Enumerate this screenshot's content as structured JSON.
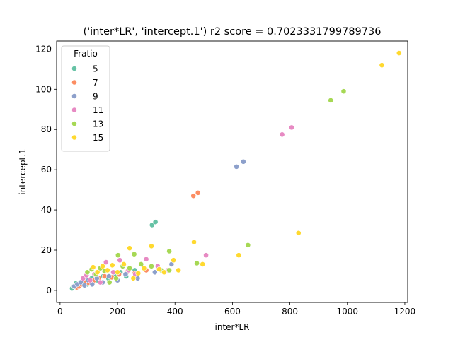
{
  "chart_data": {
    "type": "scatter",
    "title": "('inter*LR', 'intercept.1') r2 score = 0.7023331799789736",
    "xlabel": "inter*LR",
    "ylabel": "intercept.1",
    "xlim": [
      -12,
      1210
    ],
    "ylim": [
      -6,
      124
    ],
    "x_ticks": [
      0,
      200,
      400,
      600,
      800,
      1000,
      1200
    ],
    "y_ticks": [
      0,
      20,
      40,
      60,
      80,
      100,
      120
    ],
    "grid": false,
    "legend": {
      "title": "Fratio",
      "placement": "top-left"
    },
    "series": [
      {
        "name": "5",
        "color": "#66c2a5",
        "points": [
          [
            42,
            1
          ],
          [
            48,
            2
          ],
          [
            55,
            3.5
          ],
          [
            62,
            2.5
          ],
          [
            70,
            4
          ],
          [
            85,
            5.5
          ],
          [
            95,
            3
          ],
          [
            110,
            6
          ],
          [
            130,
            5
          ],
          [
            150,
            7
          ],
          [
            168,
            6
          ],
          [
            190,
            8
          ],
          [
            210,
            9
          ],
          [
            230,
            7
          ],
          [
            260,
            10
          ],
          [
            320,
            32.5
          ],
          [
            332,
            34
          ]
        ]
      },
      {
        "name": "7",
        "color": "#fc8d62",
        "points": [
          [
            58,
            1.5
          ],
          [
            66,
            2
          ],
          [
            75,
            3
          ],
          [
            88,
            4
          ],
          [
            100,
            3.5
          ],
          [
            118,
            5
          ],
          [
            135,
            6
          ],
          [
            155,
            7
          ],
          [
            180,
            6.5
          ],
          [
            205,
            8
          ],
          [
            232,
            9
          ],
          [
            260,
            8.5
          ],
          [
            300,
            10
          ],
          [
            464,
            47
          ],
          [
            480,
            48.5
          ]
        ]
      },
      {
        "name": "9",
        "color": "#8da0cb",
        "points": [
          [
            50,
            2
          ],
          [
            60,
            3
          ],
          [
            72,
            4
          ],
          [
            85,
            2.5
          ],
          [
            98,
            5
          ],
          [
            112,
            3
          ],
          [
            128,
            6
          ],
          [
            148,
            4
          ],
          [
            170,
            7
          ],
          [
            200,
            5
          ],
          [
            228,
            8
          ],
          [
            270,
            6
          ],
          [
            330,
            9
          ],
          [
            388,
            13
          ],
          [
            614,
            61.5
          ],
          [
            638,
            64
          ]
        ]
      },
      {
        "name": "11",
        "color": "#e78ac3",
        "points": [
          [
            80,
            6
          ],
          [
            92,
            7.5
          ],
          [
            105,
            5
          ],
          [
            120,
            8
          ],
          [
            140,
            4
          ],
          [
            160,
            14
          ],
          [
            185,
            9
          ],
          [
            208,
            15
          ],
          [
            238,
            10
          ],
          [
            262,
            8
          ],
          [
            300,
            15.5
          ],
          [
            340,
            12
          ],
          [
            375,
            10
          ],
          [
            508,
            17.5
          ],
          [
            773,
            77.5
          ],
          [
            806,
            81
          ]
        ]
      },
      {
        "name": "13",
        "color": "#a6d854",
        "points": [
          [
            95,
            9
          ],
          [
            110,
            10.5
          ],
          [
            125,
            8
          ],
          [
            140,
            11
          ],
          [
            155,
            9.5
          ],
          [
            172,
            4
          ],
          [
            195,
            6
          ],
          [
            202,
            17.5
          ],
          [
            218,
            12
          ],
          [
            242,
            11
          ],
          [
            258,
            18
          ],
          [
            282,
            13
          ],
          [
            318,
            12
          ],
          [
            352,
            10
          ],
          [
            380,
            10
          ],
          [
            380,
            19.5
          ],
          [
            476,
            13.5
          ],
          [
            654,
            22.5
          ],
          [
            942,
            94.5
          ],
          [
            987,
            99
          ]
        ]
      },
      {
        "name": "15",
        "color": "#ffd92f",
        "points": [
          [
            115,
            11.5
          ],
          [
            130,
            9
          ],
          [
            148,
            12
          ],
          [
            165,
            10
          ],
          [
            182,
            12.5
          ],
          [
            200,
            9
          ],
          [
            222,
            13
          ],
          [
            242,
            21
          ],
          [
            255,
            6
          ],
          [
            272,
            8.5
          ],
          [
            292,
            11
          ],
          [
            318,
            22
          ],
          [
            345,
            10.5
          ],
          [
            362,
            9
          ],
          [
            395,
            15
          ],
          [
            412,
            10
          ],
          [
            466,
            24
          ],
          [
            496,
            13
          ],
          [
            622,
            17.5
          ],
          [
            830,
            28.5
          ],
          [
            1120,
            112
          ],
          [
            1180,
            118
          ]
        ]
      }
    ]
  }
}
